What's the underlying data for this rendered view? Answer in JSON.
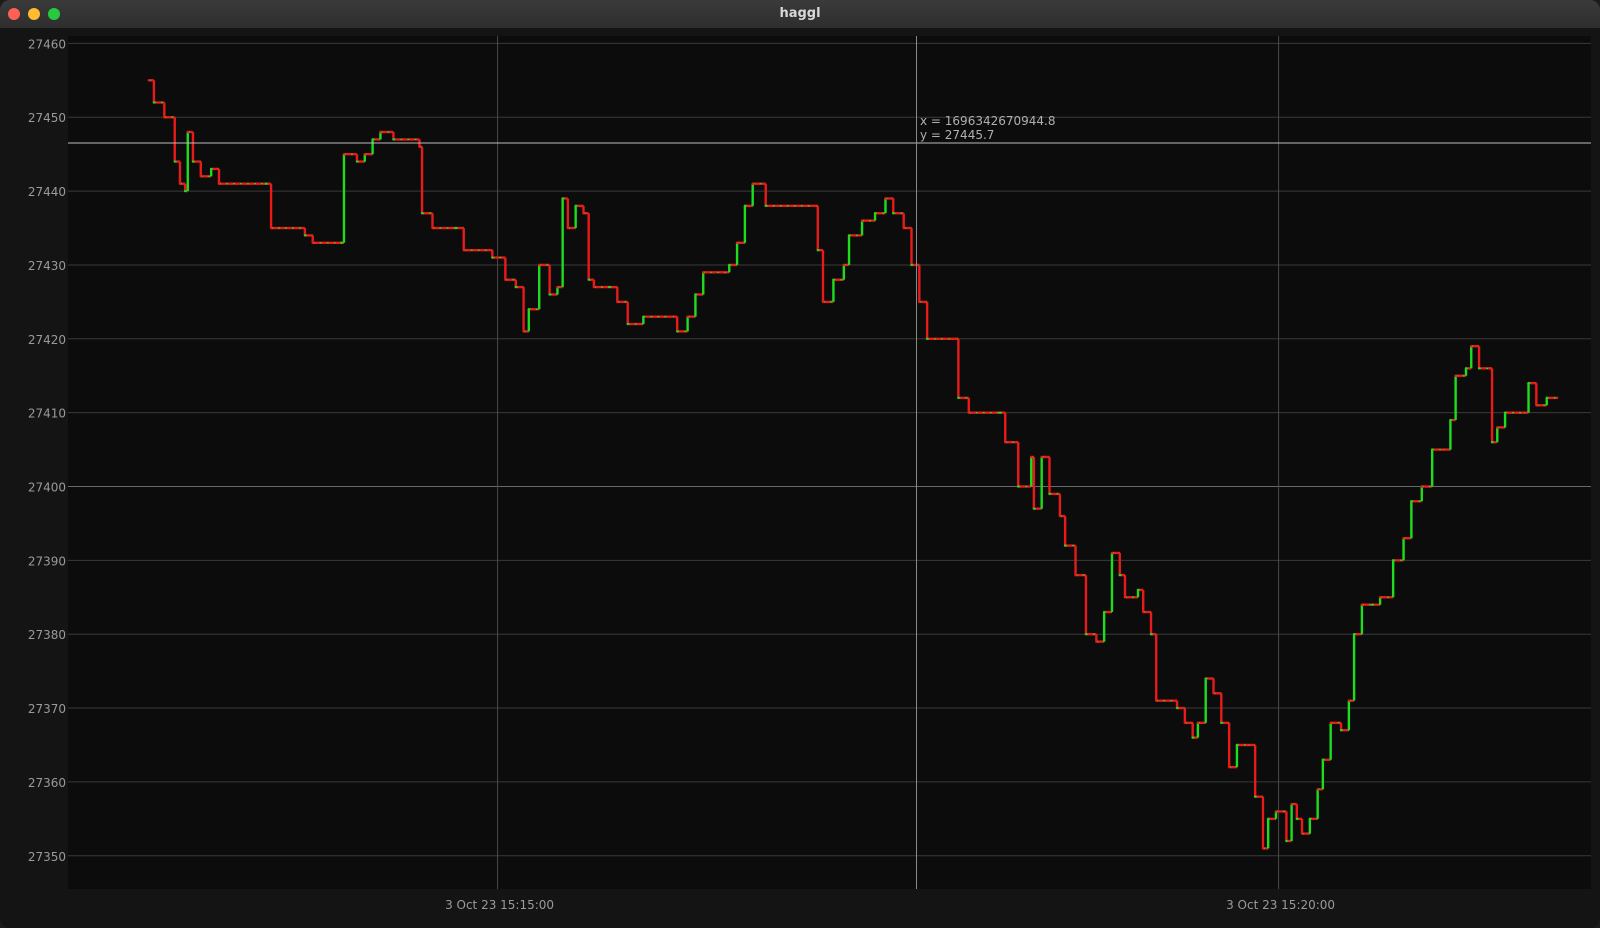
{
  "window": {
    "title": "haggl"
  },
  "cursor": {
    "x_readout": "x = 1696342670944.8",
    "y_readout": "y = 27445.7"
  },
  "colors": {
    "up": "#1fdc1f",
    "down": "#e81a1a",
    "grid": "#3a3a3a",
    "axis_text": "#9a9a9a",
    "plot_bg": "#0c0c0c"
  },
  "chart_data": {
    "type": "line",
    "title": "",
    "xlabel": "",
    "ylabel": "",
    "ylim": [
      27345.5,
      27461
    ],
    "xlim": [
      "15:12:15",
      "15:22:00"
    ],
    "yticks": [
      "27350",
      "27360",
      "27370",
      "27380",
      "27390",
      "27400",
      "27410",
      "27420",
      "27430",
      "27440",
      "27450",
      "27460"
    ],
    "xticks": [
      "3 Oct 23 15:15:00",
      "3 Oct 23 15:20:00"
    ],
    "xtick_times": [
      "15:15:00",
      "15:20:00"
    ],
    "series": [
      {
        "values": [
          [
            "15:12:46",
            27455
          ],
          [
            "15:12:48",
            27452
          ],
          [
            "15:12:52",
            27450
          ],
          [
            "15:12:56",
            27444
          ],
          [
            "15:12:58",
            27441
          ],
          [
            "15:13:00",
            27440
          ],
          [
            "15:13:01",
            27448
          ],
          [
            "15:13:03",
            27444
          ],
          [
            "15:13:06",
            27442
          ],
          [
            "15:13:10",
            27443
          ],
          [
            "15:13:13",
            27441
          ],
          [
            "15:13:31",
            27441
          ],
          [
            "15:13:33",
            27435
          ],
          [
            "15:13:46",
            27434
          ],
          [
            "15:13:49",
            27433
          ],
          [
            "15:14:00",
            27433
          ],
          [
            "15:14:01",
            27445
          ],
          [
            "15:14:06",
            27444
          ],
          [
            "15:14:09",
            27445
          ],
          [
            "15:14:12",
            27447
          ],
          [
            "15:14:15",
            27448
          ],
          [
            "15:14:20",
            27447
          ],
          [
            "15:14:30",
            27446
          ],
          [
            "15:14:31",
            27437
          ],
          [
            "15:14:35",
            27435
          ],
          [
            "15:14:44",
            27435
          ],
          [
            "15:14:47",
            27432
          ],
          [
            "15:14:58",
            27431
          ],
          [
            "15:15:03",
            27428
          ],
          [
            "15:15:07",
            27427
          ],
          [
            "15:15:10",
            27421
          ],
          [
            "15:15:12",
            27424
          ],
          [
            "15:15:16",
            27430
          ],
          [
            "15:15:20",
            27426
          ],
          [
            "15:15:23",
            27427
          ],
          [
            "15:15:25",
            27439
          ],
          [
            "15:15:27",
            27435
          ],
          [
            "15:15:30",
            27438
          ],
          [
            "15:15:33",
            27437
          ],
          [
            "15:15:35",
            27428
          ],
          [
            "15:15:37",
            27427
          ],
          [
            "15:15:43",
            27427
          ],
          [
            "15:15:46",
            27425
          ],
          [
            "15:15:50",
            27422
          ],
          [
            "15:15:55",
            27422
          ],
          [
            "15:15:56",
            27423
          ],
          [
            "15:16:07",
            27423
          ],
          [
            "15:16:09",
            27421
          ],
          [
            "15:16:13",
            27423
          ],
          [
            "15:16:16",
            27426
          ],
          [
            "15:16:19",
            27429
          ],
          [
            "15:16:29",
            27430
          ],
          [
            "15:16:32",
            27433
          ],
          [
            "15:16:35",
            27438
          ],
          [
            "15:16:38",
            27441
          ],
          [
            "15:16:43",
            27438
          ],
          [
            "15:17:02",
            27438
          ],
          [
            "15:17:03",
            27432
          ],
          [
            "15:17:05",
            27425
          ],
          [
            "15:17:09",
            27428
          ],
          [
            "15:17:13",
            27430
          ],
          [
            "15:17:15",
            27434
          ],
          [
            "15:17:20",
            27436
          ],
          [
            "15:17:25",
            27437
          ],
          [
            "15:17:29",
            27439
          ],
          [
            "15:17:32",
            27437
          ],
          [
            "15:17:36",
            27435
          ],
          [
            "15:17:39",
            27430
          ],
          [
            "15:17:42",
            27425
          ],
          [
            "15:17:45",
            27420
          ],
          [
            "15:17:56",
            27420
          ],
          [
            "15:17:57",
            27412
          ],
          [
            "15:18:01",
            27410
          ],
          [
            "15:18:13",
            27410
          ],
          [
            "15:18:15",
            27406
          ],
          [
            "15:18:20",
            27400
          ],
          [
            "15:18:25",
            27404
          ],
          [
            "15:18:26",
            27397
          ],
          [
            "15:18:29",
            27404
          ],
          [
            "15:18:32",
            27399
          ],
          [
            "15:18:36",
            27396
          ],
          [
            "15:18:38",
            27392
          ],
          [
            "15:18:42",
            27388
          ],
          [
            "15:18:46",
            27380
          ],
          [
            "15:18:50",
            27379
          ],
          [
            "15:18:53",
            27383
          ],
          [
            "15:18:56",
            27391
          ],
          [
            "15:18:59",
            27388
          ],
          [
            "15:19:01",
            27385
          ],
          [
            "15:19:06",
            27386
          ],
          [
            "15:19:08",
            27383
          ],
          [
            "15:19:11",
            27380
          ],
          [
            "15:19:13",
            27371
          ],
          [
            "15:19:21",
            27370
          ],
          [
            "15:19:24",
            27368
          ],
          [
            "15:19:27",
            27366
          ],
          [
            "15:19:29",
            27368
          ],
          [
            "15:19:32",
            27374
          ],
          [
            "15:19:35",
            27372
          ],
          [
            "15:19:38",
            27368
          ],
          [
            "15:19:41",
            27362
          ],
          [
            "15:19:44",
            27365
          ],
          [
            "15:19:48",
            27365
          ],
          [
            "15:19:51",
            27358
          ],
          [
            "15:19:54",
            27351
          ],
          [
            "15:19:56",
            27355
          ],
          [
            "15:19:59",
            27356
          ],
          [
            "15:20:03",
            27352
          ],
          [
            "15:20:05",
            27357
          ],
          [
            "15:20:07",
            27355
          ],
          [
            "15:20:09",
            27353
          ],
          [
            "15:20:12",
            27355
          ],
          [
            "15:20:15",
            27359
          ],
          [
            "15:20:17",
            27363
          ],
          [
            "15:20:20",
            27368
          ],
          [
            "15:20:24",
            27367
          ],
          [
            "15:20:27",
            27371
          ],
          [
            "15:20:29",
            27380
          ],
          [
            "15:20:32",
            27384
          ],
          [
            "15:20:36",
            27384
          ],
          [
            "15:20:39",
            27385
          ],
          [
            "15:20:44",
            27390
          ],
          [
            "15:20:48",
            27393
          ],
          [
            "15:20:51",
            27398
          ],
          [
            "15:20:55",
            27400
          ],
          [
            "15:20:59",
            27405
          ],
          [
            "15:21:03",
            27405
          ],
          [
            "15:21:06",
            27409
          ],
          [
            "15:21:08",
            27415
          ],
          [
            "15:21:12",
            27416
          ],
          [
            "15:21:14",
            27419
          ],
          [
            "15:21:17",
            27416
          ],
          [
            "15:21:21",
            27416
          ],
          [
            "15:21:22",
            27406
          ],
          [
            "15:21:24",
            27408
          ],
          [
            "15:21:27",
            27410
          ],
          [
            "15:21:34",
            27410
          ],
          [
            "15:21:36",
            27414
          ],
          [
            "15:21:39",
            27411
          ],
          [
            "15:21:43",
            27412
          ],
          [
            "15:21:47",
            27412
          ]
        ]
      }
    ]
  }
}
